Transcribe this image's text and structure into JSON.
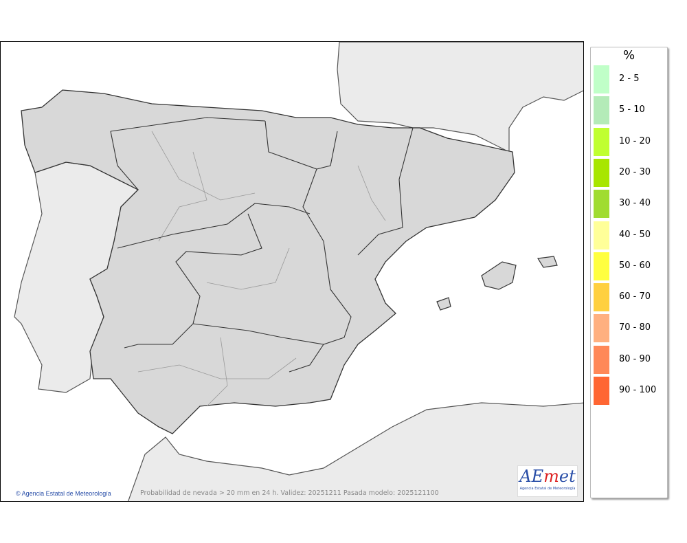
{
  "map": {
    "credit": "Agencia Estatal de Meteorología",
    "caption": "Probabilidad de nevada > 20 mm en 24 h. Validez: 20251211 Pasada modelo: 2025121100",
    "logo": {
      "text": "AEmet",
      "subtitle": "Agencia Estatal de Meteorología"
    },
    "colors": {
      "sea": "#ffffff",
      "land_outside": "#ebebeb",
      "land_spain": "#d8d8d8",
      "border": "#333333"
    }
  },
  "legend": {
    "title": "%",
    "items": [
      {
        "label": "2 - 5",
        "color": "#c0ffc8"
      },
      {
        "label": "5 - 10",
        "color": "#b4ebb8"
      },
      {
        "label": "10 - 20",
        "color": "#c0ff30"
      },
      {
        "label": "20 - 30",
        "color": "#a8e600"
      },
      {
        "label": "30 - 40",
        "color": "#a0dc30"
      },
      {
        "label": "40 - 50",
        "color": "#ffff99"
      },
      {
        "label": "50 - 60",
        "color": "#ffff40"
      },
      {
        "label": "60 - 70",
        "color": "#ffd040"
      },
      {
        "label": "70 - 80",
        "color": "#ffb080"
      },
      {
        "label": "80 - 90",
        "color": "#ff8858"
      },
      {
        "label": "90 - 100",
        "color": "#ff6633"
      }
    ]
  }
}
